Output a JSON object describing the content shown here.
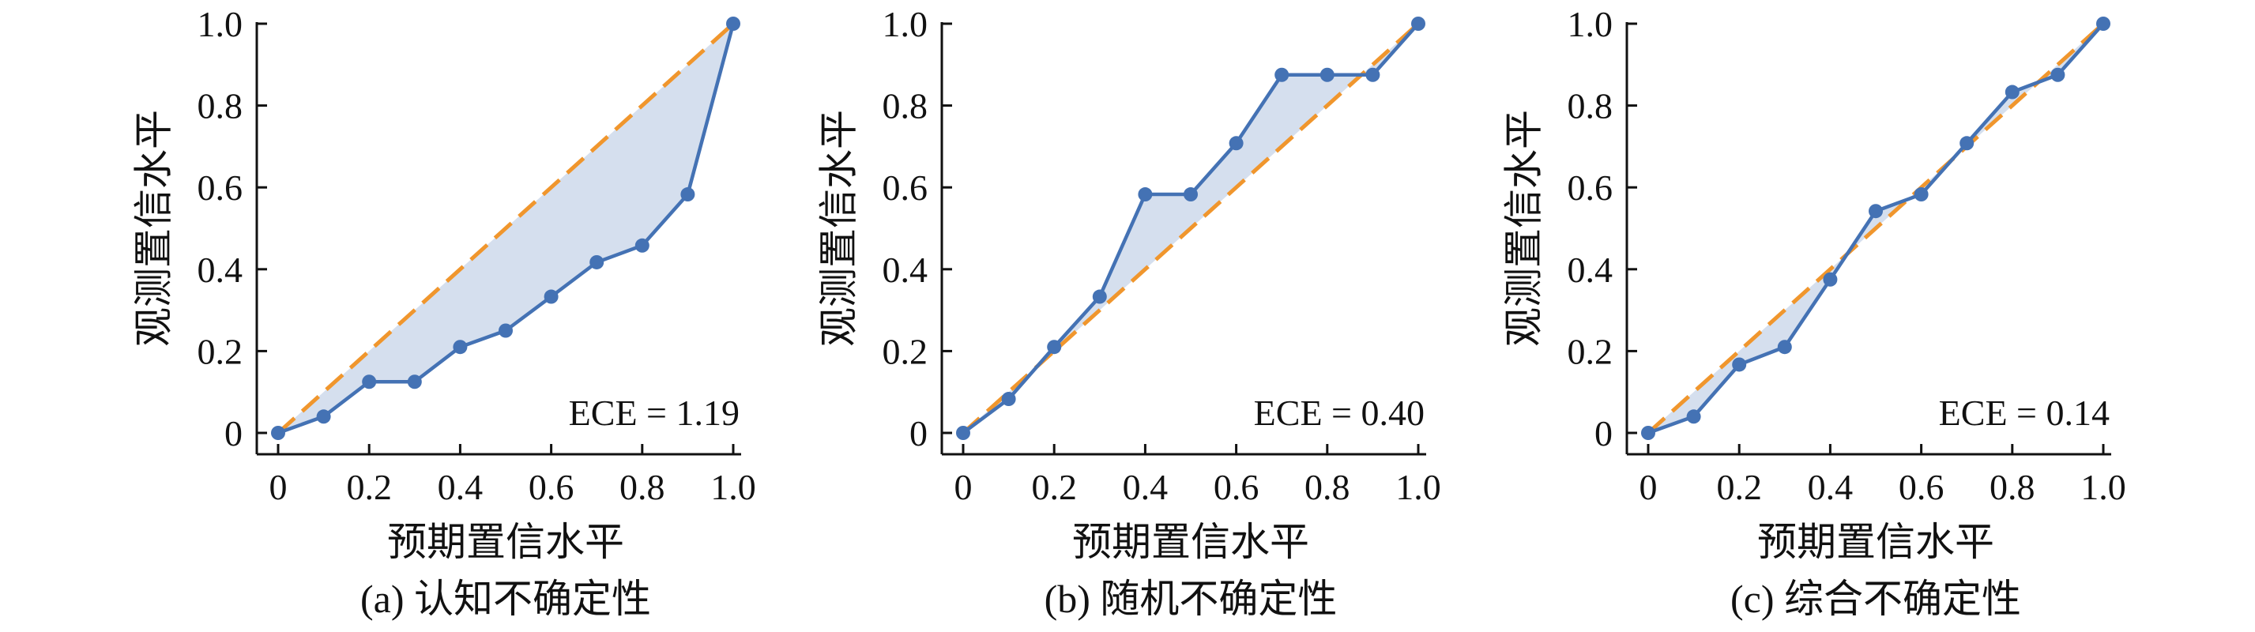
{
  "colors": {
    "curve": "#4472b4",
    "diagonal": "#f0962d",
    "fill": "#d5dfee",
    "axis": "#111111"
  },
  "chart_data": [
    {
      "type": "line",
      "caption": "(a) 认知不确定性",
      "xlabel": "预期置信水平",
      "ylabel": "观测置信水平",
      "xlim": [
        0,
        1
      ],
      "ylim": [
        0,
        1
      ],
      "xticks": [
        "0",
        "0.2",
        "0.4",
        "0.6",
        "0.8",
        "1.0"
      ],
      "yticks": [
        "0",
        "0.2",
        "0.4",
        "0.6",
        "0.8",
        "1.0"
      ],
      "grid": false,
      "annotation": "ECE = 1.19",
      "x": [
        0,
        0.1,
        0.2,
        0.3,
        0.4,
        0.5,
        0.6,
        0.7,
        0.8,
        0.9,
        1.0
      ],
      "y": [
        0,
        0.04,
        0.125,
        0.125,
        0.21,
        0.25,
        0.333,
        0.417,
        0.458,
        0.583,
        1.0
      ]
    },
    {
      "type": "line",
      "caption": "(b) 随机不确定性",
      "xlabel": "预期置信水平",
      "ylabel": "观测置信水平",
      "xlim": [
        0,
        1
      ],
      "ylim": [
        0,
        1
      ],
      "xticks": [
        "0",
        "0.2",
        "0.4",
        "0.6",
        "0.8",
        "1.0"
      ],
      "yticks": [
        "0",
        "0.2",
        "0.4",
        "0.6",
        "0.8",
        "1.0"
      ],
      "grid": false,
      "annotation": "ECE = 0.40",
      "x": [
        0,
        0.1,
        0.2,
        0.3,
        0.4,
        0.5,
        0.6,
        0.7,
        0.8,
        0.9,
        1.0
      ],
      "y": [
        0,
        0.083,
        0.21,
        0.333,
        0.583,
        0.583,
        0.708,
        0.875,
        0.875,
        0.875,
        1.0
      ]
    },
    {
      "type": "line",
      "caption": "(c) 综合不确定性",
      "xlabel": "预期置信水平",
      "ylabel": "观测置信水平",
      "xlim": [
        0,
        1
      ],
      "ylim": [
        0,
        1
      ],
      "xticks": [
        "0",
        "0.2",
        "0.4",
        "0.6",
        "0.8",
        "1.0"
      ],
      "yticks": [
        "0",
        "0.2",
        "0.4",
        "0.6",
        "0.8",
        "1.0"
      ],
      "grid": false,
      "annotation": "ECE = 0.14",
      "x": [
        0,
        0.1,
        0.2,
        0.3,
        0.4,
        0.5,
        0.6,
        0.7,
        0.8,
        0.9,
        1.0
      ],
      "y": [
        0,
        0.04,
        0.167,
        0.21,
        0.375,
        0.542,
        0.583,
        0.708,
        0.833,
        0.875,
        1.0
      ]
    }
  ]
}
